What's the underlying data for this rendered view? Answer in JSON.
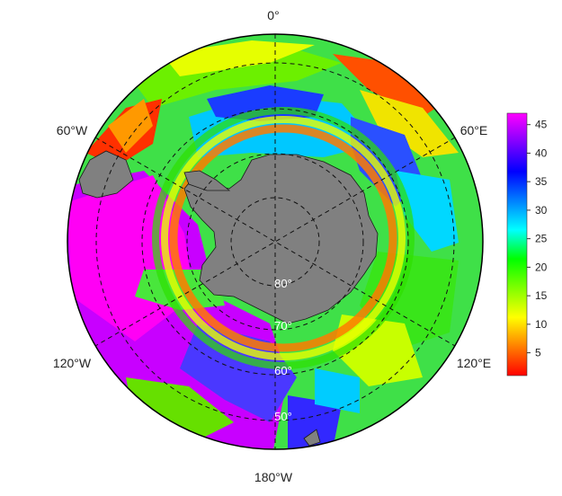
{
  "map": {
    "projection": "south-polar-stereographic",
    "longitude_labels": {
      "top": "0°",
      "upper_left": "60°W",
      "upper_right": "60°E",
      "lower_left": "120°W",
      "lower_right": "120°E",
      "bottom": "180°W"
    },
    "latitude_labels": [
      "80°",
      "70°",
      "60°",
      "50°"
    ],
    "land_color": "#808080",
    "frame_color": "#000000",
    "graticule_color": "#111111"
  },
  "colorbar": {
    "ticks": [
      "5",
      "10",
      "15",
      "20",
      "25",
      "30",
      "35",
      "40",
      "45"
    ],
    "min": 1,
    "max": 47,
    "colors": [
      "#ff0000",
      "#ff8000",
      "#ffff00",
      "#80ff00",
      "#00ff00",
      "#00ffff",
      "#0080ff",
      "#0000ff",
      "#8000ff",
      "#ff00ff"
    ]
  },
  "field_regions": [
    {
      "name": "pacific-sector",
      "color": "#d400ff"
    },
    {
      "name": "pacific-magenta-core",
      "color": "#ff00ff"
    },
    {
      "name": "drake-passage-warm",
      "color": "#ff2a00"
    },
    {
      "name": "atlantic-blue",
      "color": "#1a3cff"
    },
    {
      "name": "indian-green",
      "color": "#39e51a"
    },
    {
      "name": "coastal-low",
      "color": "#ff7a00"
    }
  ]
}
